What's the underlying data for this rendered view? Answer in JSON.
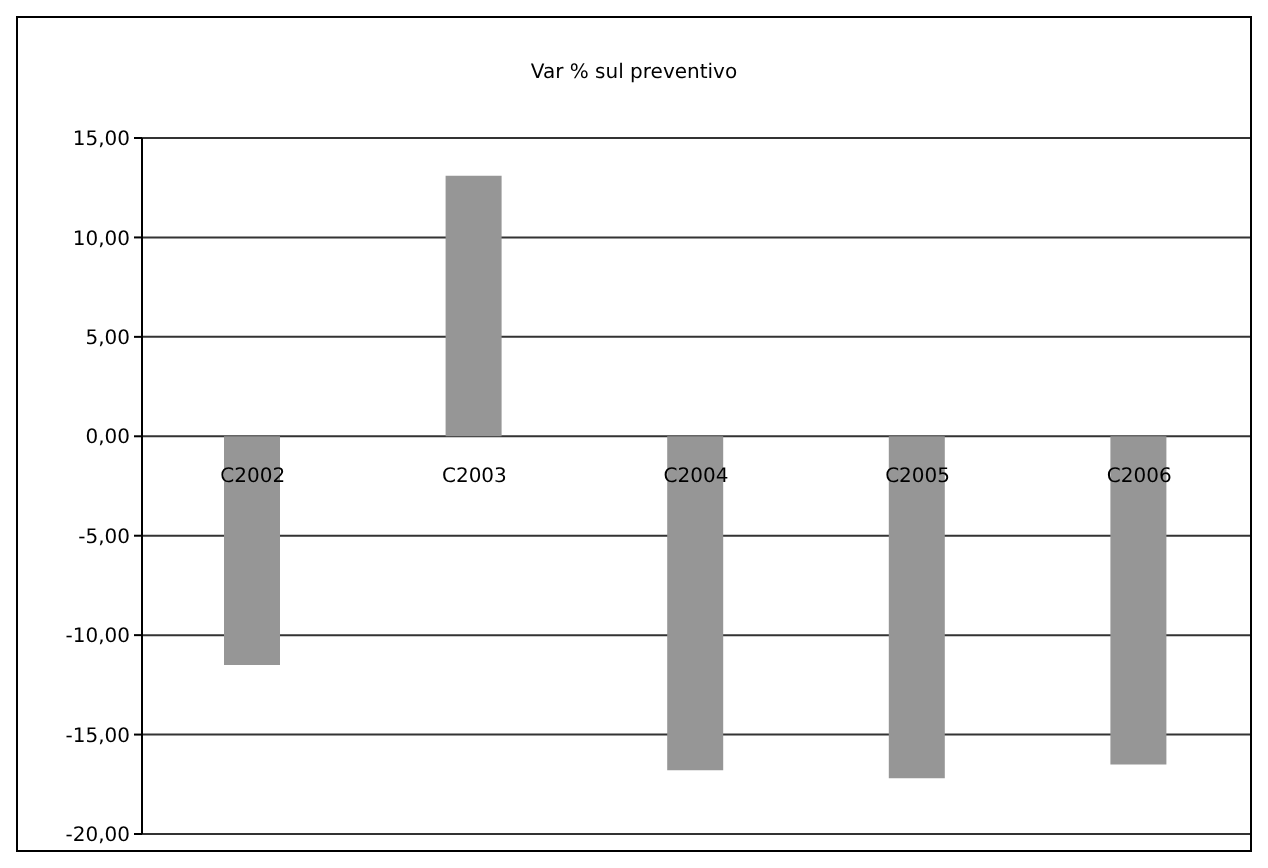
{
  "chart_data": {
    "type": "bar",
    "title": "Var % sul preventivo",
    "categories": [
      "C2002",
      "C2003",
      "C2004",
      "C2005",
      "C2006"
    ],
    "values": [
      -11.5,
      13.1,
      -16.8,
      -17.2,
      -16.5
    ],
    "color": "#969696",
    "ylim": [
      -20,
      15
    ],
    "yticks": [
      {
        "value": -20,
        "label": "-20,00"
      },
      {
        "value": -15,
        "label": "-15,00"
      },
      {
        "value": -10,
        "label": "-10,00"
      },
      {
        "value": -5,
        "label": "-5,00"
      },
      {
        "value": 0,
        "label": "0,00"
      },
      {
        "value": 5,
        "label": "5,00"
      },
      {
        "value": 10,
        "label": "10,00"
      },
      {
        "value": 15,
        "label": "15,00"
      }
    ],
    "grid": "y"
  }
}
